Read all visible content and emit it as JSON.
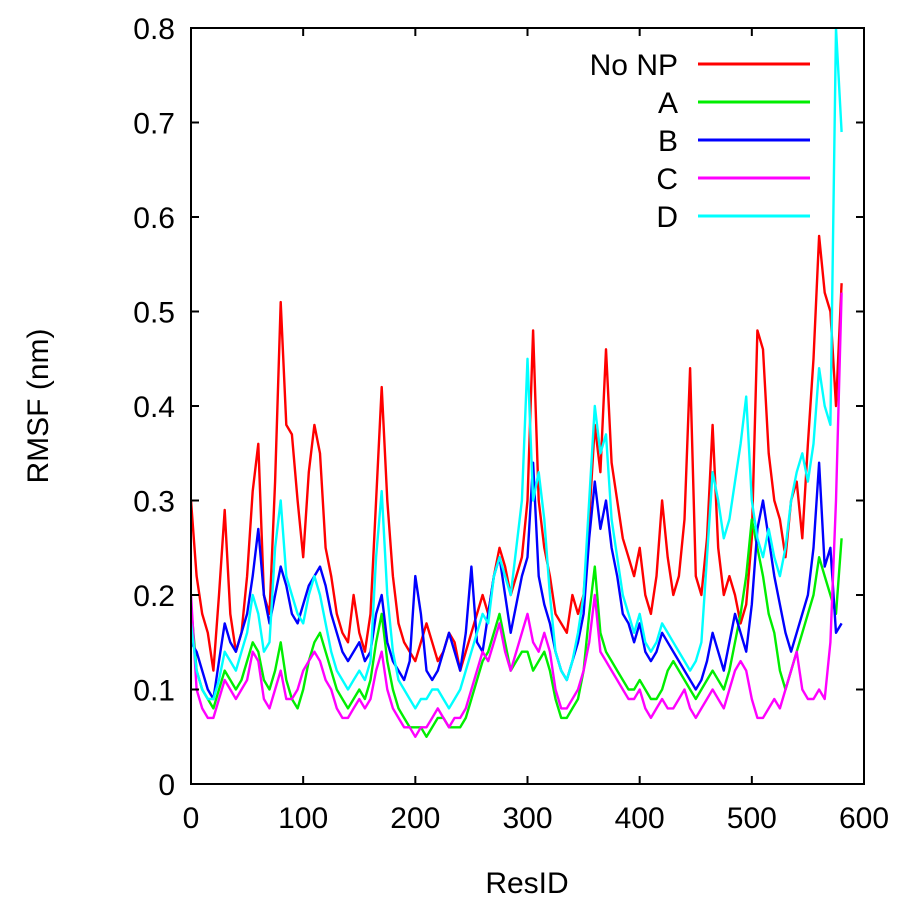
{
  "chart_data": {
    "type": "line",
    "xlabel": "ResID",
    "ylabel": "RMSF (nm)",
    "xlim": [
      0,
      600
    ],
    "ylim": [
      0,
      0.8
    ],
    "xticks": [
      0,
      100,
      200,
      300,
      400,
      500,
      600
    ],
    "yticks": [
      0,
      0.1,
      0.2,
      0.3,
      0.4,
      0.5,
      0.6,
      0.7,
      0.8
    ],
    "xtick_labels": [
      "0",
      "100",
      "200",
      "300",
      "400",
      "500",
      "600"
    ],
    "ytick_labels": [
      "0",
      "0.1",
      "0.2",
      "0.3",
      "0.4",
      "0.5",
      "0.6",
      "0.7",
      "0.8"
    ],
    "grid": false,
    "legend_position": "top-right",
    "series": [
      {
        "name": "No NP",
        "color": "#ff0000",
        "x": [
          0,
          5,
          10,
          15,
          20,
          25,
          30,
          35,
          40,
          45,
          50,
          55,
          60,
          65,
          70,
          75,
          80,
          85,
          90,
          95,
          100,
          105,
          110,
          115,
          120,
          125,
          130,
          135,
          140,
          145,
          150,
          155,
          160,
          165,
          170,
          175,
          180,
          185,
          190,
          195,
          200,
          205,
          210,
          215,
          220,
          225,
          230,
          235,
          240,
          245,
          250,
          255,
          260,
          265,
          270,
          275,
          280,
          285,
          290,
          295,
          300,
          305,
          310,
          315,
          320,
          325,
          330,
          335,
          340,
          345,
          350,
          355,
          360,
          365,
          370,
          375,
          380,
          385,
          390,
          395,
          400,
          405,
          410,
          415,
          420,
          425,
          430,
          435,
          440,
          445,
          450,
          455,
          460,
          465,
          470,
          475,
          480,
          485,
          490,
          495,
          500,
          505,
          510,
          515,
          520,
          525,
          530,
          535,
          540,
          545,
          550,
          555,
          560,
          565,
          570,
          575,
          580
        ],
        "values": [
          0.3,
          0.22,
          0.18,
          0.16,
          0.12,
          0.2,
          0.29,
          0.18,
          0.14,
          0.16,
          0.22,
          0.31,
          0.36,
          0.2,
          0.18,
          0.32,
          0.51,
          0.38,
          0.37,
          0.3,
          0.24,
          0.33,
          0.38,
          0.35,
          0.25,
          0.22,
          0.18,
          0.16,
          0.15,
          0.2,
          0.16,
          0.14,
          0.18,
          0.3,
          0.42,
          0.3,
          0.22,
          0.17,
          0.15,
          0.14,
          0.13,
          0.15,
          0.17,
          0.15,
          0.13,
          0.14,
          0.16,
          0.15,
          0.12,
          0.14,
          0.16,
          0.18,
          0.2,
          0.18,
          0.22,
          0.25,
          0.23,
          0.2,
          0.22,
          0.24,
          0.3,
          0.48,
          0.3,
          0.25,
          0.22,
          0.18,
          0.17,
          0.16,
          0.2,
          0.18,
          0.2,
          0.28,
          0.38,
          0.33,
          0.46,
          0.34,
          0.3,
          0.26,
          0.24,
          0.22,
          0.25,
          0.2,
          0.18,
          0.22,
          0.3,
          0.24,
          0.2,
          0.22,
          0.28,
          0.44,
          0.22,
          0.2,
          0.26,
          0.38,
          0.25,
          0.2,
          0.22,
          0.2,
          0.17,
          0.19,
          0.26,
          0.48,
          0.46,
          0.35,
          0.3,
          0.28,
          0.24,
          0.3,
          0.32,
          0.26,
          0.36,
          0.45,
          0.58,
          0.52,
          0.5,
          0.4,
          0.53
        ]
      },
      {
        "name": "A",
        "color": "#00ee00",
        "x": [
          0,
          5,
          10,
          15,
          20,
          25,
          30,
          35,
          40,
          45,
          50,
          55,
          60,
          65,
          70,
          75,
          80,
          85,
          90,
          95,
          100,
          105,
          110,
          115,
          120,
          125,
          130,
          135,
          140,
          145,
          150,
          155,
          160,
          165,
          170,
          175,
          180,
          185,
          190,
          195,
          200,
          205,
          210,
          215,
          220,
          225,
          230,
          235,
          240,
          245,
          250,
          255,
          260,
          265,
          270,
          275,
          280,
          285,
          290,
          295,
          300,
          305,
          310,
          315,
          320,
          325,
          330,
          335,
          340,
          345,
          350,
          355,
          360,
          365,
          370,
          375,
          380,
          385,
          390,
          395,
          400,
          405,
          410,
          415,
          420,
          425,
          430,
          435,
          440,
          445,
          450,
          455,
          460,
          465,
          470,
          475,
          480,
          485,
          490,
          495,
          500,
          505,
          510,
          515,
          520,
          525,
          530,
          535,
          540,
          545,
          550,
          555,
          560,
          565,
          570,
          575,
          580
        ],
        "values": [
          0.19,
          0.12,
          0.1,
          0.09,
          0.08,
          0.1,
          0.12,
          0.11,
          0.1,
          0.11,
          0.13,
          0.15,
          0.14,
          0.11,
          0.1,
          0.12,
          0.15,
          0.11,
          0.09,
          0.08,
          0.1,
          0.13,
          0.15,
          0.16,
          0.14,
          0.12,
          0.1,
          0.09,
          0.08,
          0.09,
          0.1,
          0.09,
          0.11,
          0.15,
          0.18,
          0.13,
          0.1,
          0.08,
          0.07,
          0.06,
          0.06,
          0.06,
          0.05,
          0.06,
          0.07,
          0.07,
          0.06,
          0.06,
          0.06,
          0.07,
          0.09,
          0.11,
          0.13,
          0.14,
          0.16,
          0.18,
          0.15,
          0.12,
          0.13,
          0.14,
          0.14,
          0.12,
          0.13,
          0.14,
          0.12,
          0.09,
          0.07,
          0.07,
          0.08,
          0.09,
          0.12,
          0.18,
          0.23,
          0.16,
          0.14,
          0.13,
          0.12,
          0.11,
          0.1,
          0.1,
          0.11,
          0.1,
          0.09,
          0.09,
          0.1,
          0.12,
          0.13,
          0.12,
          0.11,
          0.1,
          0.09,
          0.1,
          0.11,
          0.12,
          0.11,
          0.1,
          0.12,
          0.15,
          0.18,
          0.22,
          0.28,
          0.25,
          0.22,
          0.18,
          0.16,
          0.12,
          0.1,
          0.12,
          0.14,
          0.16,
          0.18,
          0.2,
          0.24,
          0.22,
          0.2,
          0.18,
          0.26
        ]
      },
      {
        "name": "B",
        "color": "#0000ff",
        "x": [
          0,
          5,
          10,
          15,
          20,
          25,
          30,
          35,
          40,
          45,
          50,
          55,
          60,
          65,
          70,
          75,
          80,
          85,
          90,
          95,
          100,
          105,
          110,
          115,
          120,
          125,
          130,
          135,
          140,
          145,
          150,
          155,
          160,
          165,
          170,
          175,
          180,
          185,
          190,
          195,
          200,
          205,
          210,
          215,
          220,
          225,
          230,
          235,
          240,
          245,
          250,
          255,
          260,
          265,
          270,
          275,
          280,
          285,
          290,
          295,
          300,
          305,
          310,
          315,
          320,
          325,
          330,
          335,
          340,
          345,
          350,
          355,
          360,
          365,
          370,
          375,
          380,
          385,
          390,
          395,
          400,
          405,
          410,
          415,
          420,
          425,
          430,
          435,
          440,
          445,
          450,
          455,
          460,
          465,
          470,
          475,
          480,
          485,
          490,
          495,
          500,
          505,
          510,
          515,
          520,
          525,
          530,
          535,
          540,
          545,
          550,
          555,
          560,
          565,
          570,
          575,
          580
        ],
        "values": [
          0.15,
          0.14,
          0.12,
          0.1,
          0.09,
          0.13,
          0.17,
          0.15,
          0.14,
          0.16,
          0.18,
          0.22,
          0.27,
          0.2,
          0.17,
          0.2,
          0.23,
          0.21,
          0.18,
          0.17,
          0.19,
          0.21,
          0.22,
          0.23,
          0.21,
          0.18,
          0.16,
          0.14,
          0.13,
          0.14,
          0.15,
          0.13,
          0.14,
          0.18,
          0.2,
          0.15,
          0.13,
          0.12,
          0.11,
          0.13,
          0.22,
          0.18,
          0.12,
          0.11,
          0.12,
          0.14,
          0.16,
          0.14,
          0.12,
          0.16,
          0.23,
          0.15,
          0.14,
          0.18,
          0.22,
          0.24,
          0.2,
          0.16,
          0.19,
          0.22,
          0.24,
          0.34,
          0.22,
          0.19,
          0.17,
          0.14,
          0.12,
          0.11,
          0.13,
          0.15,
          0.18,
          0.26,
          0.32,
          0.27,
          0.3,
          0.25,
          0.22,
          0.18,
          0.17,
          0.15,
          0.17,
          0.14,
          0.13,
          0.14,
          0.16,
          0.15,
          0.14,
          0.13,
          0.12,
          0.11,
          0.1,
          0.11,
          0.13,
          0.16,
          0.14,
          0.12,
          0.15,
          0.18,
          0.16,
          0.14,
          0.19,
          0.27,
          0.3,
          0.26,
          0.22,
          0.19,
          0.16,
          0.14,
          0.16,
          0.18,
          0.2,
          0.25,
          0.34,
          0.23,
          0.25,
          0.16,
          0.17
        ]
      },
      {
        "name": "C",
        "color": "#ff00ff",
        "x": [
          0,
          5,
          10,
          15,
          20,
          25,
          30,
          35,
          40,
          45,
          50,
          55,
          60,
          65,
          70,
          75,
          80,
          85,
          90,
          95,
          100,
          105,
          110,
          115,
          120,
          125,
          130,
          135,
          140,
          145,
          150,
          155,
          160,
          165,
          170,
          175,
          180,
          185,
          190,
          195,
          200,
          205,
          210,
          215,
          220,
          225,
          230,
          235,
          240,
          245,
          250,
          255,
          260,
          265,
          270,
          275,
          280,
          285,
          290,
          295,
          300,
          305,
          310,
          315,
          320,
          325,
          330,
          335,
          340,
          345,
          350,
          355,
          360,
          365,
          370,
          375,
          380,
          385,
          390,
          395,
          400,
          405,
          410,
          415,
          420,
          425,
          430,
          435,
          440,
          445,
          450,
          455,
          460,
          465,
          470,
          475,
          480,
          485,
          490,
          495,
          500,
          505,
          510,
          515,
          520,
          525,
          530,
          535,
          540,
          545,
          550,
          555,
          560,
          565,
          570,
          575,
          580
        ],
        "values": [
          0.2,
          0.1,
          0.08,
          0.07,
          0.07,
          0.09,
          0.11,
          0.1,
          0.09,
          0.1,
          0.11,
          0.14,
          0.13,
          0.09,
          0.08,
          0.1,
          0.12,
          0.09,
          0.09,
          0.1,
          0.12,
          0.13,
          0.14,
          0.13,
          0.11,
          0.1,
          0.08,
          0.07,
          0.07,
          0.08,
          0.09,
          0.08,
          0.09,
          0.12,
          0.14,
          0.1,
          0.08,
          0.07,
          0.06,
          0.06,
          0.05,
          0.06,
          0.06,
          0.07,
          0.08,
          0.07,
          0.06,
          0.07,
          0.07,
          0.08,
          0.1,
          0.12,
          0.14,
          0.13,
          0.15,
          0.17,
          0.14,
          0.12,
          0.14,
          0.16,
          0.18,
          0.15,
          0.14,
          0.16,
          0.14,
          0.1,
          0.08,
          0.08,
          0.09,
          0.1,
          0.12,
          0.15,
          0.2,
          0.14,
          0.13,
          0.12,
          0.11,
          0.1,
          0.09,
          0.09,
          0.1,
          0.08,
          0.07,
          0.08,
          0.09,
          0.08,
          0.08,
          0.09,
          0.1,
          0.08,
          0.07,
          0.08,
          0.09,
          0.1,
          0.09,
          0.08,
          0.1,
          0.12,
          0.13,
          0.12,
          0.09,
          0.07,
          0.07,
          0.08,
          0.09,
          0.08,
          0.1,
          0.12,
          0.14,
          0.1,
          0.09,
          0.09,
          0.1,
          0.09,
          0.15,
          0.3,
          0.52
        ]
      },
      {
        "name": "D",
        "color": "#00ffff",
        "x": [
          0,
          5,
          10,
          15,
          20,
          25,
          30,
          35,
          40,
          45,
          50,
          55,
          60,
          65,
          70,
          75,
          80,
          85,
          90,
          95,
          100,
          105,
          110,
          115,
          120,
          125,
          130,
          135,
          140,
          145,
          150,
          155,
          160,
          165,
          170,
          175,
          180,
          185,
          190,
          195,
          200,
          205,
          210,
          215,
          220,
          225,
          230,
          235,
          240,
          245,
          250,
          255,
          260,
          265,
          270,
          275,
          280,
          285,
          290,
          295,
          300,
          305,
          310,
          315,
          320,
          325,
          330,
          335,
          340,
          345,
          350,
          355,
          360,
          365,
          370,
          375,
          380,
          385,
          390,
          395,
          400,
          405,
          410,
          415,
          420,
          425,
          430,
          435,
          440,
          445,
          450,
          455,
          460,
          465,
          470,
          475,
          480,
          485,
          490,
          495,
          500,
          505,
          510,
          515,
          520,
          525,
          530,
          535,
          540,
          545,
          550,
          555,
          560,
          565,
          570,
          575,
          580
        ],
        "values": [
          0.17,
          0.12,
          0.1,
          0.09,
          0.09,
          0.11,
          0.14,
          0.13,
          0.12,
          0.14,
          0.16,
          0.2,
          0.18,
          0.14,
          0.15,
          0.25,
          0.3,
          0.22,
          0.2,
          0.18,
          0.17,
          0.2,
          0.22,
          0.2,
          0.17,
          0.14,
          0.12,
          0.11,
          0.1,
          0.11,
          0.12,
          0.11,
          0.13,
          0.24,
          0.31,
          0.2,
          0.14,
          0.11,
          0.1,
          0.09,
          0.08,
          0.09,
          0.09,
          0.1,
          0.1,
          0.09,
          0.08,
          0.09,
          0.1,
          0.12,
          0.14,
          0.16,
          0.18,
          0.17,
          0.22,
          0.24,
          0.22,
          0.2,
          0.25,
          0.3,
          0.45,
          0.3,
          0.33,
          0.28,
          0.2,
          0.14,
          0.12,
          0.11,
          0.13,
          0.16,
          0.2,
          0.3,
          0.4,
          0.35,
          0.37,
          0.28,
          0.24,
          0.2,
          0.18,
          0.16,
          0.18,
          0.15,
          0.14,
          0.15,
          0.17,
          0.16,
          0.15,
          0.14,
          0.13,
          0.12,
          0.13,
          0.15,
          0.24,
          0.33,
          0.3,
          0.26,
          0.28,
          0.32,
          0.36,
          0.41,
          0.3,
          0.26,
          0.24,
          0.27,
          0.24,
          0.22,
          0.25,
          0.3,
          0.33,
          0.35,
          0.32,
          0.36,
          0.44,
          0.4,
          0.38,
          0.8,
          0.69
        ]
      }
    ]
  }
}
